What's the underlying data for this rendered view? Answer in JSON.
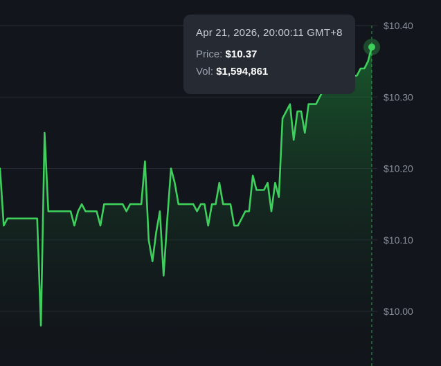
{
  "chart_data": {
    "type": "line",
    "series": [
      {
        "values": [
          10.2,
          10.12,
          10.13,
          10.13,
          10.13,
          10.13,
          10.13,
          10.13,
          10.13,
          10.13,
          10.13,
          9.98,
          10.25,
          10.14,
          10.14,
          10.14,
          10.14,
          10.14,
          10.14,
          10.14,
          10.12,
          10.14,
          10.15,
          10.14,
          10.14,
          10.14,
          10.14,
          10.12,
          10.15,
          10.15,
          10.15,
          10.15,
          10.15,
          10.15,
          10.14,
          10.15,
          10.15,
          10.15,
          10.15,
          10.21,
          10.1,
          10.07,
          10.11,
          10.14,
          10.05,
          10.13,
          10.2,
          10.18,
          10.15,
          10.15,
          10.15,
          10.15,
          10.15,
          10.14,
          10.15,
          10.15,
          10.12,
          10.15,
          10.15,
          10.18,
          10.15,
          10.15,
          10.15,
          10.12,
          10.12,
          10.13,
          10.14,
          10.14,
          10.19,
          10.17,
          10.17,
          10.17,
          10.18,
          10.14,
          10.18,
          10.16,
          10.27,
          10.28,
          10.29,
          10.24,
          10.28,
          10.28,
          10.25,
          10.29,
          10.29,
          10.29,
          10.3,
          10.31,
          10.31,
          10.32,
          10.32,
          10.32,
          10.33,
          10.33,
          10.33,
          10.33,
          10.33,
          10.34,
          10.34,
          10.35,
          10.37
        ]
      }
    ],
    "y_ticks": [
      "$10.40",
      "$10.30",
      "$10.20",
      "$10.10",
      "$10.00"
    ],
    "ylim": [
      9.93,
      10.42
    ],
    "grid": true
  },
  "tooltip": {
    "time": "Apr 21, 2026, 20:00:11 GMT+8",
    "price_label": "Price:",
    "price_value": "$10.37",
    "vol_label": "Vol:",
    "vol_value": "$1,594,861"
  },
  "colors": {
    "line": "#3ecf5c",
    "background": "#12151b",
    "grid": "#262b33",
    "tooltip_bg": "#252a33"
  }
}
